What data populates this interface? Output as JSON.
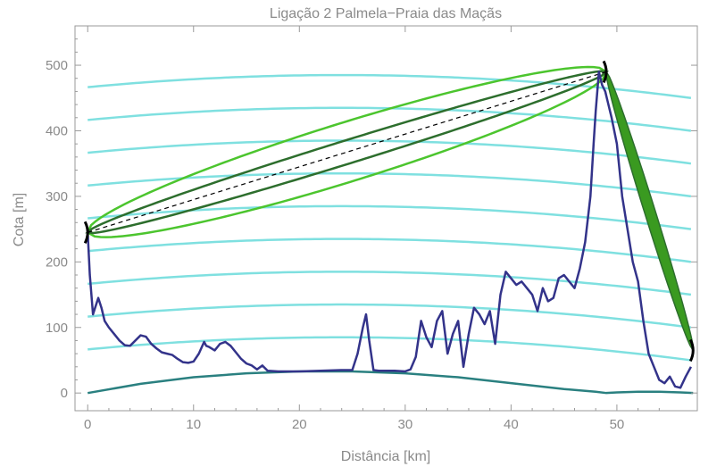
{
  "chart_data": {
    "type": "line",
    "title": "Ligação 2 Palmela−Praia das Maçãs",
    "xlabel": "Distância [km]",
    "ylabel": "Cota [m]",
    "xlim": [
      -1.2,
      57.6
    ],
    "ylim": [
      -27,
      560
    ],
    "xticks": [
      0,
      10,
      20,
      30,
      40,
      50
    ],
    "yticks": [
      0,
      100,
      200,
      300,
      400,
      500
    ],
    "grid": false,
    "colors": {
      "terrain": "#33338a",
      "earth_curve": "#2a8080",
      "ray_curves": "#7fe0e0",
      "fresnel_outer": "#4cc52e",
      "fresnel_inner": "#2d6e2d",
      "line_of_sight": "#000000",
      "second_hop": "#3a9a20",
      "antenna": "#000000"
    },
    "series": [
      {
        "role": "terrain",
        "x": [
          0.0,
          0.2,
          0.5,
          0.8,
          1.0,
          1.3,
          1.6,
          2.0,
          2.5,
          3.0,
          3.5,
          4.0,
          4.5,
          5.0,
          5.5,
          6.0,
          6.5,
          7.0,
          7.5,
          8.0,
          8.5,
          9.0,
          9.5,
          10.0,
          10.5,
          11.0,
          11.2,
          11.5,
          12.0,
          12.5,
          13.0,
          13.5,
          14.0,
          14.5,
          15.0,
          15.5,
          16.0,
          16.5,
          17.0,
          18.0,
          20.0,
          22.0,
          24.0,
          25.0,
          25.5,
          26.0,
          26.3,
          26.6,
          27.0,
          27.5,
          28.0,
          29.0,
          30.0,
          30.5,
          31.0,
          31.5,
          32.0,
          32.5,
          33.0,
          33.5,
          34.0,
          34.5,
          35.0,
          35.5,
          36.0,
          36.5,
          37.0,
          37.5,
          38.0,
          38.5,
          39.0,
          39.5,
          40.0,
          40.5,
          41.0,
          41.5,
          42.0,
          42.5,
          43.0,
          43.5,
          44.0,
          44.5,
          45.0,
          45.5,
          46.0,
          46.5,
          47.0,
          47.5,
          47.8,
          48.0,
          48.3,
          48.6,
          48.9,
          49.2,
          49.5,
          50.0,
          50.5,
          51.0,
          51.5,
          52.0,
          52.5,
          53.0,
          53.5,
          54.0,
          54.5,
          55.0,
          55.5,
          56.0,
          56.5,
          57.0
        ],
        "y": [
          245,
          180,
          120,
          135,
          145,
          130,
          110,
          100,
          90,
          80,
          73,
          72,
          80,
          88,
          86,
          75,
          68,
          62,
          60,
          58,
          52,
          47,
          46,
          48,
          60,
          78,
          72,
          70,
          65,
          75,
          78,
          72,
          62,
          52,
          45,
          42,
          36,
          42,
          34,
          33,
          33,
          34,
          35,
          35,
          60,
          100,
          120,
          80,
          35,
          34,
          34,
          34,
          33,
          36,
          55,
          110,
          85,
          70,
          110,
          125,
          60,
          90,
          110,
          40,
          90,
          130,
          120,
          105,
          125,
          75,
          150,
          185,
          175,
          165,
          170,
          160,
          150,
          125,
          160,
          140,
          145,
          175,
          180,
          170,
          160,
          190,
          230,
          300,
          380,
          430,
          490,
          470,
          460,
          440,
          420,
          380,
          300,
          250,
          200,
          170,
          110,
          60,
          40,
          20,
          15,
          25,
          10,
          8,
          25,
          40
        ]
      },
      {
        "role": "earth_curve",
        "x": [
          0,
          5,
          10,
          15,
          20,
          25,
          30,
          35,
          40,
          45,
          48,
          49,
          50,
          52,
          54,
          56,
          57.2
        ],
        "y": [
          0,
          14,
          24,
          30,
          33,
          33,
          30,
          24,
          15,
          6,
          2,
          0,
          1,
          2,
          2,
          1,
          0
        ]
      },
      {
        "role": "ray_curves",
        "levels": [
          50,
          100,
          150,
          200,
          250,
          300,
          350,
          400,
          450
        ]
      },
      {
        "role": "line_of_sight",
        "x": [
          0,
          49
        ],
        "y": [
          245,
          490
        ]
      },
      {
        "role": "second_hop",
        "x": [
          49,
          57.2
        ],
        "y": [
          490,
          65
        ]
      }
    ]
  }
}
